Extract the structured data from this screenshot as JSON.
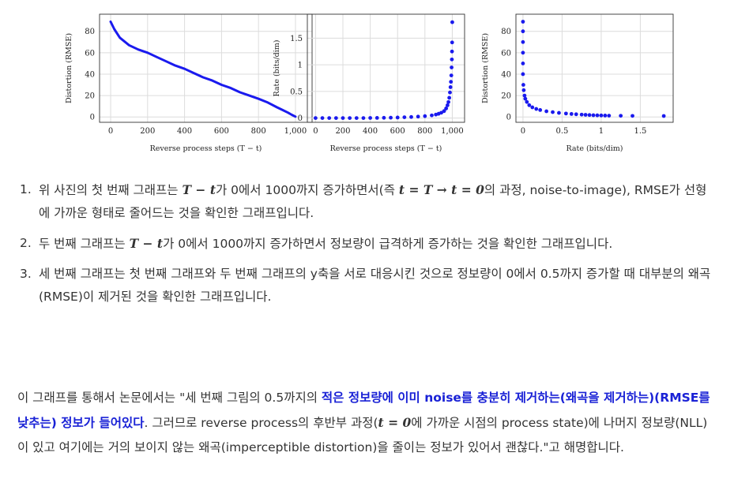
{
  "charts": [
    {
      "type": "line",
      "xlabel": "Reverse process steps (T − t)",
      "ylabel": "Distortion (RMSE)",
      "xticks": [
        "0",
        "200",
        "400",
        "600",
        "800",
        "1,000"
      ],
      "xtick_values": [
        0,
        200,
        400,
        600,
        800,
        1000
      ],
      "yticks": [
        "0",
        "20",
        "40",
        "60",
        "80"
      ],
      "ytick_values": [
        0,
        20,
        40,
        60,
        80
      ],
      "xlim": [
        -60,
        1090
      ],
      "ylim": [
        -5,
        96
      ],
      "grid": true,
      "color": "#1a1aee",
      "x": [
        0,
        20,
        50,
        100,
        150,
        200,
        250,
        300,
        350,
        400,
        450,
        500,
        550,
        600,
        650,
        700,
        750,
        800,
        850,
        900,
        930,
        960,
        980,
        1000
      ],
      "y": [
        89,
        82,
        74,
        67,
        63,
        60,
        56,
        52,
        48,
        45,
        41,
        37,
        34,
        30,
        27,
        23,
        20,
        17,
        13.5,
        9,
        6.5,
        4,
        2,
        0.3
      ]
    },
    {
      "type": "scatter",
      "xlabel": "Reverse process steps (T − t)",
      "ylabel": "Rate (bits/dim)",
      "xticks": [
        "0",
        "200",
        "400",
        "600",
        "800",
        "1,000"
      ],
      "xtick_values": [
        0,
        200,
        400,
        600,
        800,
        1000
      ],
      "yticks": [
        "0",
        "0.5",
        "1",
        "1.5"
      ],
      "ytick_values": [
        0,
        0.5,
        1,
        1.5
      ],
      "xlim": [
        -60,
        1090
      ],
      "ylim": [
        -0.08,
        1.95
      ],
      "grid": true,
      "color": "#1a1aee",
      "x": [
        0,
        50,
        100,
        150,
        200,
        250,
        300,
        350,
        400,
        450,
        500,
        550,
        600,
        650,
        700,
        750,
        800,
        850,
        880,
        900,
        920,
        940,
        955,
        965,
        972,
        978,
        983,
        987,
        990,
        993,
        995,
        997,
        998,
        999,
        1000
      ],
      "y": [
        0,
        0,
        0,
        0,
        0,
        0,
        0,
        0,
        0.002,
        0.003,
        0.005,
        0.007,
        0.01,
        0.015,
        0.02,
        0.027,
        0.036,
        0.05,
        0.065,
        0.08,
        0.1,
        0.13,
        0.18,
        0.24,
        0.3,
        0.38,
        0.48,
        0.58,
        0.68,
        0.8,
        0.95,
        1.1,
        1.25,
        1.42,
        1.8
      ]
    },
    {
      "type": "scatter",
      "xlabel": "Rate (bits/dim)",
      "ylabel": "Distortion (RMSE)",
      "xticks": [
        "0",
        "0.5",
        "1",
        "1.5"
      ],
      "xtick_values": [
        0,
        0.5,
        1,
        1.5
      ],
      "yticks": [
        "0",
        "20",
        "40",
        "60",
        "80"
      ],
      "ytick_values": [
        0,
        20,
        40,
        60,
        80
      ],
      "xlim": [
        -0.09,
        1.92
      ],
      "ylim": [
        -5,
        96
      ],
      "grid": true,
      "color": "#1a1aee",
      "x": [
        0,
        0,
        0,
        0,
        0,
        0,
        0.005,
        0.01,
        0.02,
        0.03,
        0.05,
        0.08,
        0.12,
        0.17,
        0.22,
        0.3,
        0.38,
        0.46,
        0.55,
        0.62,
        0.68,
        0.75,
        0.8,
        0.85,
        0.9,
        0.95,
        1.0,
        1.05,
        1.1,
        1.25,
        1.4,
        1.8
      ],
      "y": [
        89,
        80,
        70,
        60,
        50,
        40,
        30,
        25,
        20,
        17,
        14,
        11,
        9,
        7.5,
        6.5,
        5.3,
        4.5,
        3.8,
        3.2,
        2.8,
        2.5,
        2.2,
        2,
        1.8,
        1.6,
        1.5,
        1.4,
        1.3,
        1.2,
        1.1,
        1.0,
        0.9
      ]
    }
  ],
  "list": [
    {
      "num": "1.",
      "parts": [
        {
          "t": "위 사진의 첫 번째 그래프는 "
        },
        {
          "t": "T − t",
          "c": "m"
        },
        {
          "t": "가 0에서 1000까지 증가하면서(즉 "
        },
        {
          "t": "t = T → t = 0",
          "c": "m"
        },
        {
          "t": "의 과정, noise-to-image), RMSE가 선형에 가까운 형태로 줄어드는 것을 확인한 그래프입니다."
        }
      ]
    },
    {
      "num": "2.",
      "parts": [
        {
          "t": "두 번째 그래프는 "
        },
        {
          "t": "T − t",
          "c": "m"
        },
        {
          "t": "가 0에서 1000까지 증가하면서 정보량이 급격하게 증가하는 것을 확인한 그래프입니다."
        }
      ]
    },
    {
      "num": "3.",
      "parts": [
        {
          "t": "세 번째 그래프는 첫 번째 그래프와 두 번째 그래프의 y축을 서로 대응시킨 것으로 정보량이 0에서 0.5까지 증가할 때 대부분의 왜곡(RMSE)이 제거된 것을 확인한 그래프입니다."
        }
      ]
    }
  ],
  "paragraph": [
    {
      "t": "이 그래프를 통해서 논문에서는 \"세 번째 그림의 0.5까지의 "
    },
    {
      "t": "적은 정보량에 이미 noise를 충분히 제거하는(왜곡을 제거하는)(RMSE를 낮추는) 정보가 들어있다",
      "c": "hl"
    },
    {
      "t": ". 그러므로 reverse process의 후반부 과정("
    },
    {
      "t": "t = 0",
      "c": "m"
    },
    {
      "t": "에 가까운 시점의 process state)에 나머지 정보량(NLL)이 있고 여기에는 거의 보이지 않는 왜곡(imperceptible distortion)을 줄이는 정보가 있어서 괜찮다.\"고 해명합니다."
    }
  ]
}
